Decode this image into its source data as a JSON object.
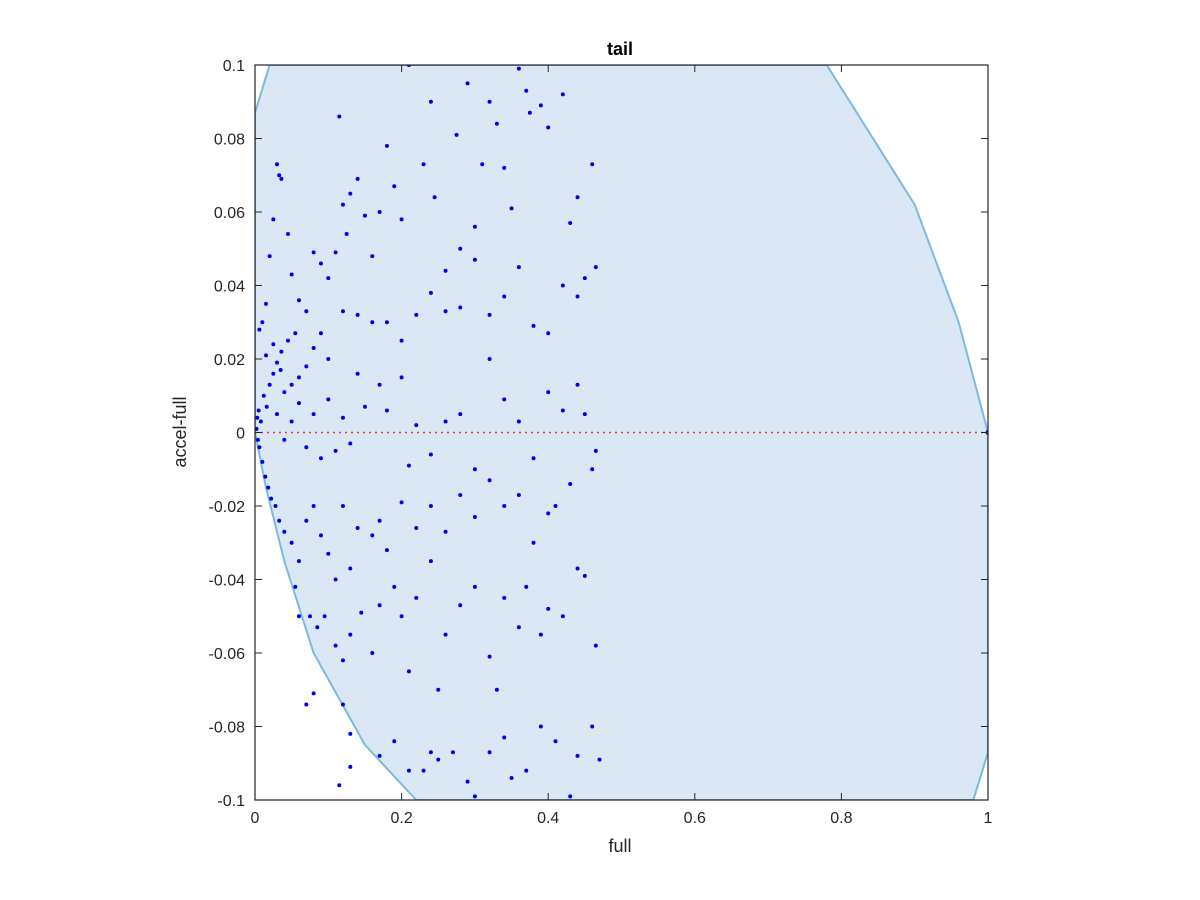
{
  "chart_data": {
    "type": "scatter",
    "title": "tail",
    "xlabel": "full",
    "ylabel": "accel-full",
    "xlim": [
      0,
      1
    ],
    "ylim": [
      -0.1,
      0.1
    ],
    "xticks": [
      0,
      0.2,
      0.4,
      0.6,
      0.8,
      1
    ],
    "xtick_labels": [
      "0",
      "0.2",
      "0.4",
      "0.6",
      "0.8",
      "1"
    ],
    "yticks": [
      -0.1,
      -0.08,
      -0.06,
      -0.04,
      -0.02,
      0,
      0.02,
      0.04,
      0.06,
      0.08,
      0.1
    ],
    "ytick_labels": [
      "-0.1",
      "-0.08",
      "-0.06",
      "-0.04",
      "-0.02",
      "0",
      "0.02",
      "0.04",
      "0.06",
      "0.08",
      "0.1"
    ],
    "grid": false,
    "colors": {
      "points": "#0000ee",
      "region_fill": "#d9e8f4",
      "region_edge": "#7fb8de",
      "zero_line": "#ee3333",
      "axes": "#262626"
    },
    "region": {
      "description": "shaded feasible region bounded by a parabola-like curve",
      "boundary": [
        {
          "x": 0.0,
          "y": 0.087
        },
        {
          "x": 0.02,
          "y": 0.1
        },
        {
          "x": 0.78,
          "y": 0.1
        },
        {
          "x": 0.9,
          "y": 0.062
        },
        {
          "x": 0.96,
          "y": 0.03
        },
        {
          "x": 1.0,
          "y": 0.0
        },
        {
          "x": 1.0,
          "y": -0.087
        },
        {
          "x": 0.98,
          "y": -0.1
        },
        {
          "x": 0.22,
          "y": -0.1
        },
        {
          "x": 0.15,
          "y": -0.085
        },
        {
          "x": 0.08,
          "y": -0.06
        },
        {
          "x": 0.04,
          "y": -0.035
        },
        {
          "x": 0.015,
          "y": -0.015
        },
        {
          "x": 0.0,
          "y": 0.0
        }
      ]
    },
    "reference_line": {
      "y": 0,
      "x_range": [
        0,
        1
      ],
      "style": "dotted"
    },
    "series": [
      {
        "points": [
          [
            0.003,
            0.004
          ],
          [
            0.004,
            -0.002
          ],
          [
            0.002,
            0.001
          ],
          [
            0.005,
            0.006
          ],
          [
            0.006,
            -0.004
          ],
          [
            0.008,
            0.003
          ],
          [
            0.01,
            -0.008
          ],
          [
            0.012,
            0.01
          ],
          [
            0.014,
            -0.012
          ],
          [
            0.016,
            0.007
          ],
          [
            0.018,
            -0.015
          ],
          [
            0.02,
            0.013
          ],
          [
            0.022,
            -0.018
          ],
          [
            0.025,
            0.016
          ],
          [
            0.028,
            -0.02
          ],
          [
            0.03,
            0.019
          ],
          [
            0.033,
            -0.024
          ],
          [
            0.036,
            0.022
          ],
          [
            0.04,
            -0.027
          ],
          [
            0.045,
            0.025
          ],
          [
            0.05,
            -0.03
          ],
          [
            0.055,
            0.027
          ],
          [
            0.006,
            0.028
          ],
          [
            0.01,
            0.03
          ],
          [
            0.015,
            0.035
          ],
          [
            0.02,
            0.048
          ],
          [
            0.025,
            0.058
          ],
          [
            0.03,
            0.073
          ],
          [
            0.033,
            0.07
          ],
          [
            0.036,
            0.069
          ],
          [
            0.045,
            0.054
          ],
          [
            0.05,
            0.043
          ],
          [
            0.06,
            0.036
          ],
          [
            0.07,
            0.033
          ],
          [
            0.08,
            0.049
          ],
          [
            0.09,
            0.046
          ],
          [
            0.1,
            0.042
          ],
          [
            0.11,
            0.049
          ],
          [
            0.115,
            0.086
          ],
          [
            0.12,
            0.062
          ],
          [
            0.125,
            0.054
          ],
          [
            0.13,
            0.065
          ],
          [
            0.14,
            0.069
          ],
          [
            0.15,
            0.059
          ],
          [
            0.16,
            0.048
          ],
          [
            0.17,
            0.06
          ],
          [
            0.18,
            0.078
          ],
          [
            0.19,
            0.067
          ],
          [
            0.2,
            0.058
          ],
          [
            0.21,
            0.1
          ],
          [
            0.23,
            0.073
          ],
          [
            0.24,
            0.09
          ],
          [
            0.245,
            0.064
          ],
          [
            0.26,
            0.044
          ],
          [
            0.275,
            0.081
          ],
          [
            0.28,
            0.05
          ],
          [
            0.29,
            0.095
          ],
          [
            0.3,
            0.056
          ],
          [
            0.31,
            0.073
          ],
          [
            0.32,
            0.09
          ],
          [
            0.33,
            0.084
          ],
          [
            0.34,
            0.072
          ],
          [
            0.35,
            0.061
          ],
          [
            0.36,
            0.099
          ],
          [
            0.37,
            0.093
          ],
          [
            0.375,
            0.087
          ],
          [
            0.39,
            0.089
          ],
          [
            0.4,
            0.083
          ],
          [
            0.42,
            0.092
          ],
          [
            0.43,
            0.057
          ],
          [
            0.44,
            0.064
          ],
          [
            0.46,
            0.073
          ],
          [
            0.465,
            0.045
          ],
          [
            0.45,
            0.042
          ],
          [
            0.44,
            0.037
          ],
          [
            0.42,
            0.04
          ],
          [
            0.4,
            0.027
          ],
          [
            0.38,
            0.029
          ],
          [
            0.36,
            0.045
          ],
          [
            0.34,
            0.037
          ],
          [
            0.32,
            0.032
          ],
          [
            0.3,
            0.047
          ],
          [
            0.28,
            0.034
          ],
          [
            0.26,
            0.033
          ],
          [
            0.24,
            0.038
          ],
          [
            0.22,
            0.032
          ],
          [
            0.2,
            0.025
          ],
          [
            0.18,
            0.03
          ],
          [
            0.16,
            0.03
          ],
          [
            0.14,
            0.032
          ],
          [
            0.12,
            0.033
          ],
          [
            0.1,
            0.02
          ],
          [
            0.09,
            0.027
          ],
          [
            0.08,
            0.023
          ],
          [
            0.07,
            0.018
          ],
          [
            0.06,
            0.015
          ],
          [
            0.05,
            0.013
          ],
          [
            0.04,
            0.011
          ],
          [
            0.035,
            0.017
          ],
          [
            0.025,
            0.024
          ],
          [
            0.015,
            0.021
          ],
          [
            0.03,
            0.005
          ],
          [
            0.04,
            -0.002
          ],
          [
            0.05,
            0.003
          ],
          [
            0.06,
            0.008
          ],
          [
            0.07,
            -0.004
          ],
          [
            0.08,
            0.005
          ],
          [
            0.09,
            -0.007
          ],
          [
            0.1,
            0.009
          ],
          [
            0.11,
            -0.005
          ],
          [
            0.12,
            0.004
          ],
          [
            0.13,
            -0.003
          ],
          [
            0.14,
            0.016
          ],
          [
            0.15,
            0.007
          ],
          [
            0.17,
            0.013
          ],
          [
            0.18,
            0.006
          ],
          [
            0.2,
            0.015
          ],
          [
            0.21,
            -0.009
          ],
          [
            0.22,
            0.002
          ],
          [
            0.24,
            -0.006
          ],
          [
            0.26,
            0.003
          ],
          [
            0.28,
            0.005
          ],
          [
            0.3,
            -0.01
          ],
          [
            0.32,
            0.02
          ],
          [
            0.34,
            0.009
          ],
          [
            0.36,
            0.003
          ],
          [
            0.38,
            -0.007
          ],
          [
            0.4,
            0.011
          ],
          [
            0.42,
            0.006
          ],
          [
            0.44,
            0.013
          ],
          [
            0.45,
            0.005
          ],
          [
            0.465,
            -0.005
          ],
          [
            0.46,
            -0.01
          ],
          [
            0.43,
            -0.014
          ],
          [
            0.41,
            -0.02
          ],
          [
            0.4,
            -0.022
          ],
          [
            0.38,
            -0.03
          ],
          [
            0.36,
            -0.017
          ],
          [
            0.34,
            -0.02
          ],
          [
            0.32,
            -0.013
          ],
          [
            0.3,
            -0.023
          ],
          [
            0.28,
            -0.017
          ],
          [
            0.26,
            -0.027
          ],
          [
            0.24,
            -0.02
          ],
          [
            0.22,
            -0.026
          ],
          [
            0.2,
            -0.019
          ],
          [
            0.18,
            -0.032
          ],
          [
            0.17,
            -0.024
          ],
          [
            0.16,
            -0.028
          ],
          [
            0.14,
            -0.026
          ],
          [
            0.13,
            -0.037
          ],
          [
            0.12,
            -0.02
          ],
          [
            0.11,
            -0.04
          ],
          [
            0.1,
            -0.033
          ],
          [
            0.09,
            -0.028
          ],
          [
            0.08,
            -0.02
          ],
          [
            0.07,
            -0.024
          ],
          [
            0.06,
            -0.035
          ],
          [
            0.055,
            -0.042
          ],
          [
            0.06,
            -0.05
          ],
          [
            0.075,
            -0.05
          ],
          [
            0.085,
            -0.053
          ],
          [
            0.095,
            -0.05
          ],
          [
            0.11,
            -0.058
          ],
          [
            0.12,
            -0.062
          ],
          [
            0.13,
            -0.055
          ],
          [
            0.145,
            -0.049
          ],
          [
            0.16,
            -0.06
          ],
          [
            0.17,
            -0.047
          ],
          [
            0.19,
            -0.042
          ],
          [
            0.2,
            -0.05
          ],
          [
            0.21,
            -0.065
          ],
          [
            0.22,
            -0.045
          ],
          [
            0.24,
            -0.035
          ],
          [
            0.25,
            -0.07
          ],
          [
            0.26,
            -0.055
          ],
          [
            0.28,
            -0.047
          ],
          [
            0.3,
            -0.042
          ],
          [
            0.32,
            -0.061
          ],
          [
            0.33,
            -0.07
          ],
          [
            0.34,
            -0.045
          ],
          [
            0.36,
            -0.053
          ],
          [
            0.37,
            -0.042
          ],
          [
            0.39,
            -0.055
          ],
          [
            0.4,
            -0.048
          ],
          [
            0.42,
            -0.05
          ],
          [
            0.44,
            -0.037
          ],
          [
            0.45,
            -0.039
          ],
          [
            0.465,
            -0.058
          ],
          [
            0.46,
            -0.08
          ],
          [
            0.44,
            -0.088
          ],
          [
            0.43,
            -0.099
          ],
          [
            0.41,
            -0.084
          ],
          [
            0.39,
            -0.08
          ],
          [
            0.37,
            -0.092
          ],
          [
            0.35,
            -0.094
          ],
          [
            0.34,
            -0.083
          ],
          [
            0.32,
            -0.087
          ],
          [
            0.3,
            -0.099
          ],
          [
            0.29,
            -0.095
          ],
          [
            0.27,
            -0.087
          ],
          [
            0.25,
            -0.089
          ],
          [
            0.24,
            -0.087
          ],
          [
            0.23,
            -0.092
          ],
          [
            0.21,
            -0.092
          ],
          [
            0.19,
            -0.084
          ],
          [
            0.17,
            -0.088
          ],
          [
            0.13,
            -0.091
          ],
          [
            0.115,
            -0.096
          ],
          [
            0.13,
            -0.082
          ],
          [
            0.12,
            -0.074
          ],
          [
            0.08,
            -0.071
          ],
          [
            0.07,
            -0.074
          ],
          [
            0.47,
            -0.089
          ]
        ]
      }
    ],
    "endpoint_marker": {
      "x": 1,
      "y": 0
    }
  }
}
